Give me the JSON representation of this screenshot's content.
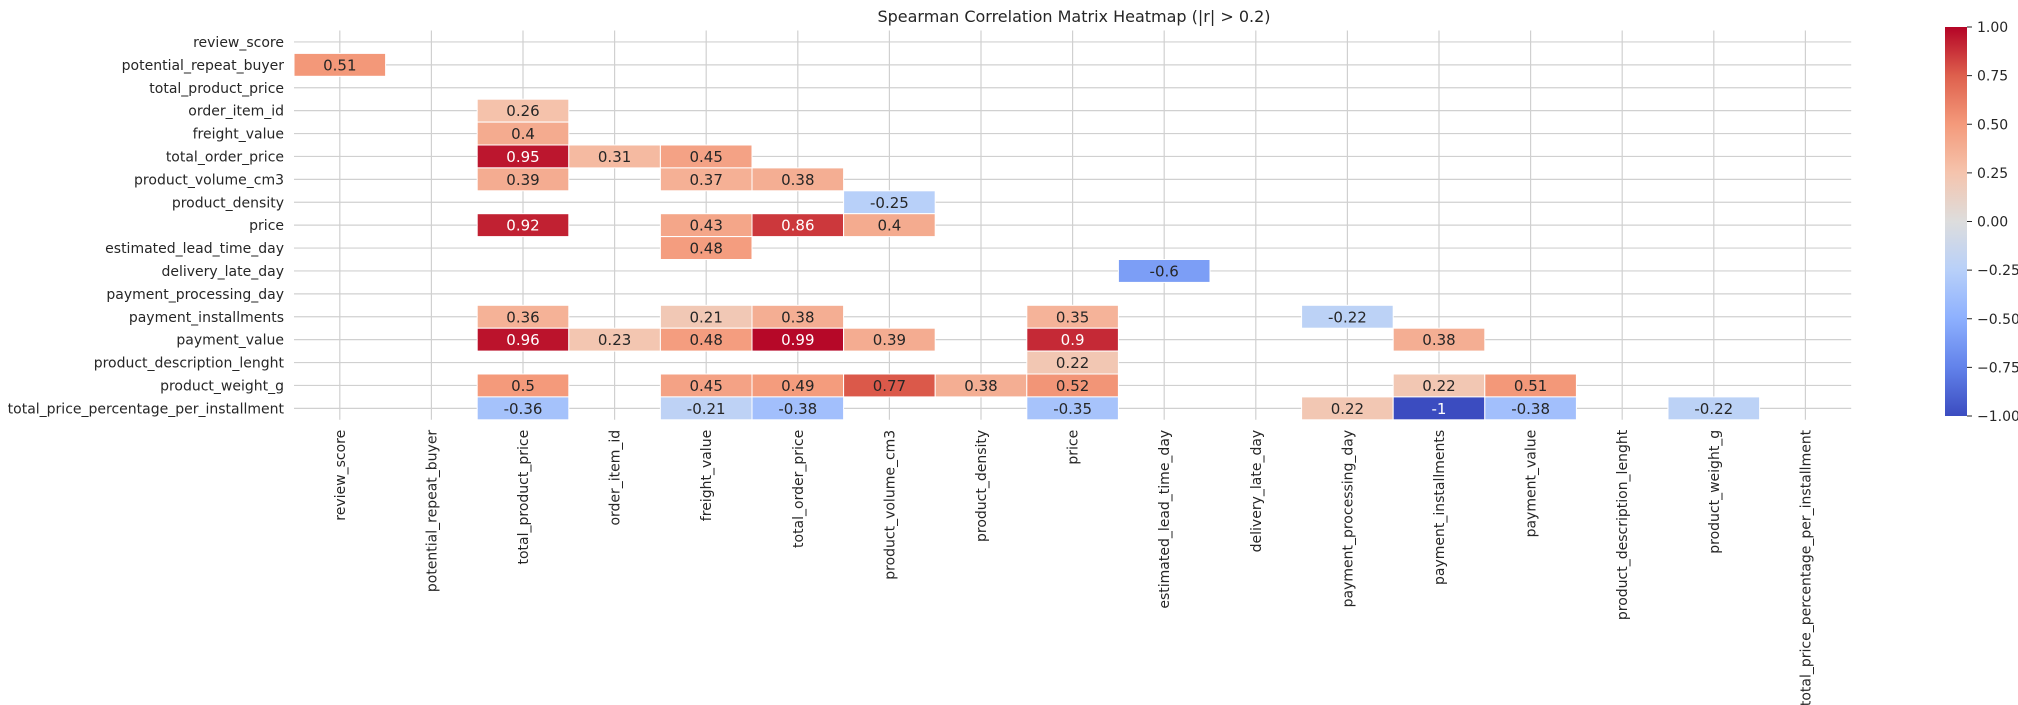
{
  "chart_data": {
    "type": "heatmap",
    "title": "Spearman Correlation Matrix Heatmap (|r| > 0.2)",
    "row_labels": [
      "review_score",
      "potential_repeat_buyer",
      "total_product_price",
      "order_item_id",
      "freight_value",
      "total_order_price",
      "product_volume_cm3",
      "product_density",
      "price",
      "estimated_lead_time_day",
      "delivery_late_day",
      "payment_processing_day",
      "payment_installments",
      "payment_value",
      "product_description_lenght",
      "product_weight_g",
      "total_price_percentage_per_installment"
    ],
    "column_labels": [
      "review_score",
      "potential_repeat_buyer",
      "total_product_price",
      "order_item_id",
      "freight_value",
      "total_order_price",
      "product_volume_cm3",
      "product_density",
      "price",
      "estimated_lead_time_day",
      "delivery_late_day",
      "payment_processing_day",
      "payment_installments",
      "payment_value",
      "product_description_lenght",
      "product_weight_g",
      "total_price_percentage_per_installment"
    ],
    "cells": [
      {
        "row": 1,
        "col": 0,
        "value": 0.51,
        "label": "0.51"
      },
      {
        "row": 3,
        "col": 2,
        "value": 0.26,
        "label": "0.26"
      },
      {
        "row": 4,
        "col": 2,
        "value": 0.4,
        "label": "0.4"
      },
      {
        "row": 5,
        "col": 2,
        "value": 0.95,
        "label": "0.95"
      },
      {
        "row": 5,
        "col": 3,
        "value": 0.31,
        "label": "0.31"
      },
      {
        "row": 5,
        "col": 4,
        "value": 0.45,
        "label": "0.45"
      },
      {
        "row": 6,
        "col": 2,
        "value": 0.39,
        "label": "0.39"
      },
      {
        "row": 6,
        "col": 4,
        "value": 0.37,
        "label": "0.37"
      },
      {
        "row": 6,
        "col": 5,
        "value": 0.38,
        "label": "0.38"
      },
      {
        "row": 7,
        "col": 6,
        "value": -0.25,
        "label": "-0.25"
      },
      {
        "row": 8,
        "col": 2,
        "value": 0.92,
        "label": "0.92"
      },
      {
        "row": 8,
        "col": 4,
        "value": 0.43,
        "label": "0.43"
      },
      {
        "row": 8,
        "col": 5,
        "value": 0.86,
        "label": "0.86"
      },
      {
        "row": 8,
        "col": 6,
        "value": 0.4,
        "label": "0.4"
      },
      {
        "row": 9,
        "col": 4,
        "value": 0.48,
        "label": "0.48"
      },
      {
        "row": 10,
        "col": 9,
        "value": -0.6,
        "label": "-0.6"
      },
      {
        "row": 12,
        "col": 2,
        "value": 0.36,
        "label": "0.36"
      },
      {
        "row": 12,
        "col": 4,
        "value": 0.21,
        "label": "0.21"
      },
      {
        "row": 12,
        "col": 5,
        "value": 0.38,
        "label": "0.38"
      },
      {
        "row": 12,
        "col": 8,
        "value": 0.35,
        "label": "0.35"
      },
      {
        "row": 12,
        "col": 11,
        "value": -0.22,
        "label": "-0.22"
      },
      {
        "row": 13,
        "col": 2,
        "value": 0.96,
        "label": "0.96"
      },
      {
        "row": 13,
        "col": 3,
        "value": 0.23,
        "label": "0.23"
      },
      {
        "row": 13,
        "col": 4,
        "value": 0.48,
        "label": "0.48"
      },
      {
        "row": 13,
        "col": 5,
        "value": 0.99,
        "label": "0.99"
      },
      {
        "row": 13,
        "col": 6,
        "value": 0.39,
        "label": "0.39"
      },
      {
        "row": 13,
        "col": 8,
        "value": 0.9,
        "label": "0.9"
      },
      {
        "row": 13,
        "col": 12,
        "value": 0.38,
        "label": "0.38"
      },
      {
        "row": 14,
        "col": 8,
        "value": 0.22,
        "label": "0.22"
      },
      {
        "row": 15,
        "col": 2,
        "value": 0.5,
        "label": "0.5"
      },
      {
        "row": 15,
        "col": 4,
        "value": 0.45,
        "label": "0.45"
      },
      {
        "row": 15,
        "col": 5,
        "value": 0.49,
        "label": "0.49"
      },
      {
        "row": 15,
        "col": 6,
        "value": 0.77,
        "label": "0.77"
      },
      {
        "row": 15,
        "col": 7,
        "value": 0.38,
        "label": "0.38"
      },
      {
        "row": 15,
        "col": 8,
        "value": 0.52,
        "label": "0.52"
      },
      {
        "row": 15,
        "col": 12,
        "value": 0.22,
        "label": "0.22"
      },
      {
        "row": 15,
        "col": 13,
        "value": 0.51,
        "label": "0.51"
      },
      {
        "row": 16,
        "col": 2,
        "value": -0.36,
        "label": "-0.36"
      },
      {
        "row": 16,
        "col": 4,
        "value": -0.21,
        "label": "-0.21"
      },
      {
        "row": 16,
        "col": 5,
        "value": -0.38,
        "label": "-0.38"
      },
      {
        "row": 16,
        "col": 8,
        "value": -0.35,
        "label": "-0.35"
      },
      {
        "row": 16,
        "col": 11,
        "value": 0.22,
        "label": "0.22"
      },
      {
        "row": 16,
        "col": 12,
        "value": -1,
        "label": "-1"
      },
      {
        "row": 16,
        "col": 13,
        "value": -0.38,
        "label": "-0.38"
      },
      {
        "row": 16,
        "col": 15,
        "value": -0.22,
        "label": "-0.22"
      }
    ],
    "vmin": -1,
    "vmax": 1,
    "colormap": "coolwarm",
    "grid": true,
    "colorbar": {
      "ticks": [
        1.0,
        0.75,
        0.5,
        0.25,
        0.0,
        -0.25,
        -0.5,
        -0.75,
        -1.0
      ],
      "tick_labels": [
        "1.00",
        "0.75",
        "0.50",
        "0.25",
        "0.00",
        "−0.25",
        "−0.50",
        "−0.75",
        "−1.00"
      ],
      "placement": "right"
    },
    "colors": {
      "grid_line": "#d0d0d0",
      "cell_border": "#ffffff",
      "text_dark": "#262626",
      "text_light": "#ffffff"
    }
  }
}
